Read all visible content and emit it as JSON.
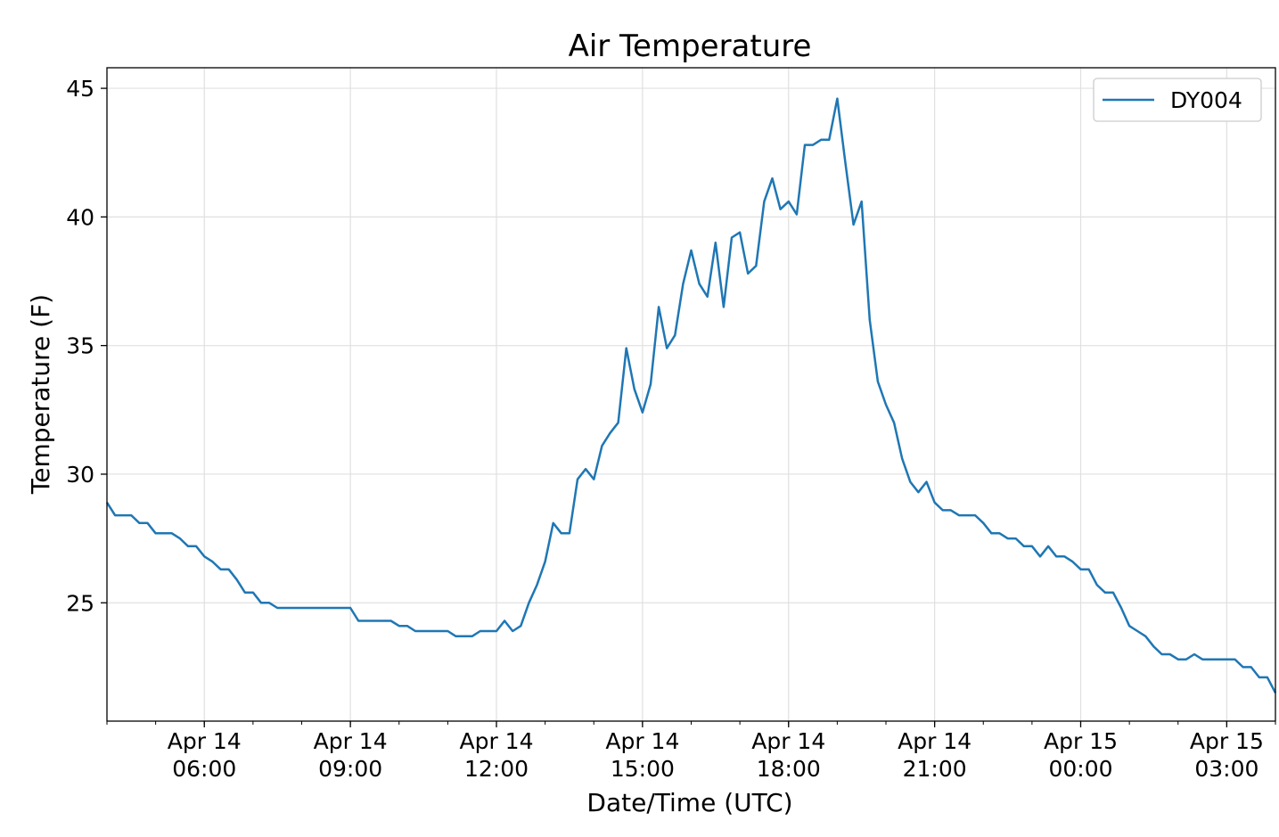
{
  "chart_data": {
    "type": "line",
    "title": "Air Temperature",
    "xlabel": "Date/Time (UTC)",
    "ylabel": "Temperature (F)",
    "ylim": [
      20.4,
      45.8
    ],
    "xlim": [
      "2021-04-14T04:00",
      "2021-04-15T04:00"
    ],
    "grid": true,
    "legend_position": "top-right",
    "y_ticks": [
      25,
      30,
      35,
      40,
      45
    ],
    "x_ticks": [
      {
        "at": "2021-04-14T06:00",
        "line1": "Apr 14",
        "line2": "06:00"
      },
      {
        "at": "2021-04-14T09:00",
        "line1": "Apr 14",
        "line2": "09:00"
      },
      {
        "at": "2021-04-14T12:00",
        "line1": "Apr 14",
        "line2": "12:00"
      },
      {
        "at": "2021-04-14T15:00",
        "line1": "Apr 14",
        "line2": "15:00"
      },
      {
        "at": "2021-04-14T18:00",
        "line1": "Apr 14",
        "line2": "18:00"
      },
      {
        "at": "2021-04-14T21:00",
        "line1": "Apr 14",
        "line2": "21:00"
      },
      {
        "at": "2021-04-15T00:00",
        "line1": "Apr 15",
        "line2": "00:00"
      },
      {
        "at": "2021-04-15T03:00",
        "line1": "Apr 15",
        "line2": "03:00"
      }
    ],
    "series": [
      {
        "name": "DY004",
        "color": "#1f77b4",
        "x": [
          "2021-04-14T04:00",
          "2021-04-14T04:10",
          "2021-04-14T04:20",
          "2021-04-14T04:30",
          "2021-04-14T04:40",
          "2021-04-14T04:50",
          "2021-04-14T05:00",
          "2021-04-14T05:10",
          "2021-04-14T05:20",
          "2021-04-14T05:30",
          "2021-04-14T05:40",
          "2021-04-14T05:50",
          "2021-04-14T06:00",
          "2021-04-14T06:10",
          "2021-04-14T06:20",
          "2021-04-14T06:30",
          "2021-04-14T06:40",
          "2021-04-14T06:50",
          "2021-04-14T07:00",
          "2021-04-14T07:10",
          "2021-04-14T07:20",
          "2021-04-14T07:30",
          "2021-04-14T07:40",
          "2021-04-14T07:50",
          "2021-04-14T08:00",
          "2021-04-14T08:10",
          "2021-04-14T08:20",
          "2021-04-14T08:30",
          "2021-04-14T08:40",
          "2021-04-14T08:50",
          "2021-04-14T09:00",
          "2021-04-14T09:10",
          "2021-04-14T09:20",
          "2021-04-14T09:30",
          "2021-04-14T09:40",
          "2021-04-14T09:50",
          "2021-04-14T10:00",
          "2021-04-14T10:10",
          "2021-04-14T10:20",
          "2021-04-14T10:30",
          "2021-04-14T10:40",
          "2021-04-14T10:50",
          "2021-04-14T11:00",
          "2021-04-14T11:10",
          "2021-04-14T11:20",
          "2021-04-14T11:30",
          "2021-04-14T11:40",
          "2021-04-14T11:50",
          "2021-04-14T12:00",
          "2021-04-14T12:10",
          "2021-04-14T12:20",
          "2021-04-14T12:30",
          "2021-04-14T12:40",
          "2021-04-14T12:50",
          "2021-04-14T13:00",
          "2021-04-14T13:10",
          "2021-04-14T13:20",
          "2021-04-14T13:30",
          "2021-04-14T13:40",
          "2021-04-14T13:50",
          "2021-04-14T14:00",
          "2021-04-14T14:10",
          "2021-04-14T14:20",
          "2021-04-14T14:30",
          "2021-04-14T14:40",
          "2021-04-14T14:50",
          "2021-04-14T15:00",
          "2021-04-14T15:10",
          "2021-04-14T15:20",
          "2021-04-14T15:30",
          "2021-04-14T15:40",
          "2021-04-14T15:50",
          "2021-04-14T16:00",
          "2021-04-14T16:10",
          "2021-04-14T16:20",
          "2021-04-14T16:30",
          "2021-04-14T16:40",
          "2021-04-14T16:50",
          "2021-04-14T17:00",
          "2021-04-14T17:10",
          "2021-04-14T17:20",
          "2021-04-14T17:30",
          "2021-04-14T17:40",
          "2021-04-14T17:50",
          "2021-04-14T18:00",
          "2021-04-14T18:10",
          "2021-04-14T18:20",
          "2021-04-14T18:30",
          "2021-04-14T18:40",
          "2021-04-14T18:50",
          "2021-04-14T19:00",
          "2021-04-14T19:10",
          "2021-04-14T19:20",
          "2021-04-14T19:30",
          "2021-04-14T19:40",
          "2021-04-14T19:50",
          "2021-04-14T20:00",
          "2021-04-14T20:10",
          "2021-04-14T20:20",
          "2021-04-14T20:30",
          "2021-04-14T20:40",
          "2021-04-14T20:50",
          "2021-04-14T21:00",
          "2021-04-14T21:10",
          "2021-04-14T21:20",
          "2021-04-14T21:30",
          "2021-04-14T21:40",
          "2021-04-14T21:50",
          "2021-04-14T22:00",
          "2021-04-14T22:10",
          "2021-04-14T22:20",
          "2021-04-14T22:30",
          "2021-04-14T22:40",
          "2021-04-14T22:50",
          "2021-04-14T23:00",
          "2021-04-14T23:10",
          "2021-04-14T23:20",
          "2021-04-14T23:30",
          "2021-04-14T23:40",
          "2021-04-14T23:50",
          "2021-04-15T00:00",
          "2021-04-15T00:10",
          "2021-04-15T00:20",
          "2021-04-15T00:30",
          "2021-04-15T00:40",
          "2021-04-15T00:50",
          "2021-04-15T01:00",
          "2021-04-15T01:10",
          "2021-04-15T01:20",
          "2021-04-15T01:30",
          "2021-04-15T01:40",
          "2021-04-15T01:50",
          "2021-04-15T02:00",
          "2021-04-15T02:10",
          "2021-04-15T02:20",
          "2021-04-15T02:30",
          "2021-04-15T02:40",
          "2021-04-15T02:50",
          "2021-04-15T03:00",
          "2021-04-15T03:10",
          "2021-04-15T03:20",
          "2021-04-15T03:30",
          "2021-04-15T03:40",
          "2021-04-15T03:50",
          "2021-04-15T04:00"
        ],
        "values": [
          28.9,
          28.4,
          28.4,
          28.4,
          28.1,
          28.1,
          27.7,
          27.7,
          27.7,
          27.5,
          27.2,
          27.2,
          26.8,
          26.6,
          26.3,
          26.3,
          25.9,
          25.4,
          25.4,
          25.0,
          25.0,
          24.8,
          24.8,
          24.8,
          24.8,
          24.8,
          24.8,
          24.8,
          24.8,
          24.8,
          24.8,
          24.3,
          24.3,
          24.3,
          24.3,
          24.3,
          24.1,
          24.1,
          23.9,
          23.9,
          23.9,
          23.9,
          23.9,
          23.7,
          23.7,
          23.7,
          23.9,
          23.9,
          23.9,
          24.3,
          23.9,
          24.1,
          25.0,
          25.7,
          26.6,
          28.1,
          27.7,
          27.7,
          29.8,
          30.2,
          29.8,
          31.1,
          31.6,
          32.0,
          34.9,
          33.3,
          32.4,
          33.5,
          36.5,
          34.9,
          35.4,
          37.4,
          38.7,
          37.4,
          36.9,
          39.0,
          36.5,
          39.2,
          39.4,
          37.8,
          38.1,
          40.6,
          41.5,
          40.3,
          40.6,
          40.1,
          42.8,
          42.8,
          43.0,
          43.0,
          44.6,
          42.1,
          39.7,
          40.6,
          36.0,
          33.6,
          32.7,
          32.0,
          30.6,
          29.7,
          29.3,
          29.7,
          28.9,
          28.6,
          28.6,
          28.4,
          28.4,
          28.4,
          28.1,
          27.7,
          27.7,
          27.5,
          27.5,
          27.2,
          27.2,
          26.8,
          27.2,
          26.8,
          26.8,
          26.6,
          26.3,
          26.3,
          25.7,
          25.4,
          25.4,
          24.8,
          24.1,
          23.9,
          23.7,
          23.3,
          23.0,
          23.0,
          22.8,
          22.8,
          23.0,
          22.8,
          22.8,
          22.8,
          22.8,
          22.8,
          22.5,
          22.5,
          22.1,
          22.1,
          21.5
        ]
      }
    ]
  }
}
